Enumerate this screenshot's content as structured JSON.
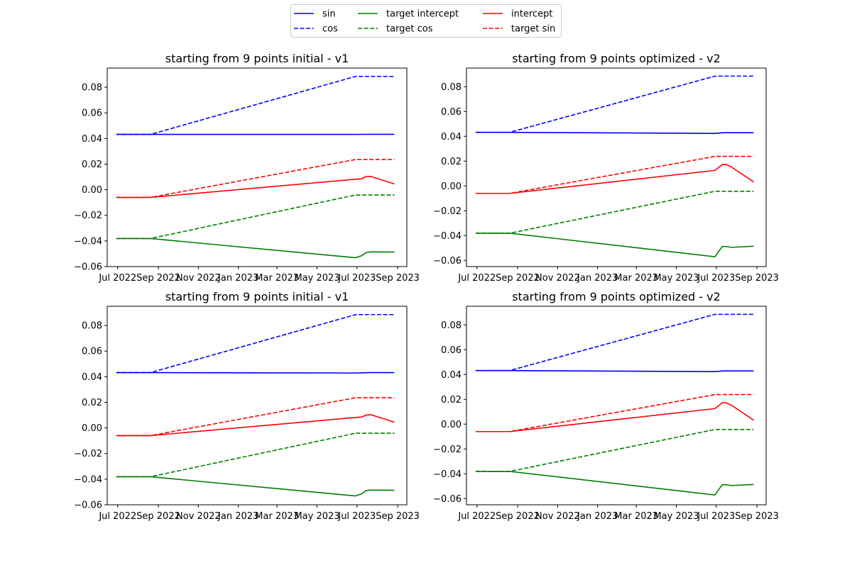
{
  "colors": {
    "sin": "#0000ff",
    "cos": "#0000ff",
    "intercept": "#ff0000",
    "target_sin": "#ff0000",
    "target_intercept": "#008000",
    "target_cos": "#008000"
  },
  "legend": {
    "placement": "top-center",
    "entries": [
      {
        "label": "sin",
        "color": "#0000ff",
        "style": "solid"
      },
      {
        "label": "cos",
        "color": "#0000ff",
        "style": "dashed"
      },
      {
        "label": "target intercept",
        "color": "#008000",
        "style": "solid"
      },
      {
        "label": "target cos",
        "color": "#008000",
        "style": "dashed"
      },
      {
        "label": "intercept",
        "color": "#ff0000",
        "style": "solid"
      },
      {
        "label": "target sin",
        "color": "#ff0000",
        "style": "dashed"
      }
    ]
  },
  "chart_data": [
    {
      "type": "line",
      "title": "starting from 9 points initial - v1",
      "xlabel": "",
      "ylabel": "",
      "xlim": [
        "2022-06-15",
        "2023-09-15"
      ],
      "ylim": [
        -0.06,
        0.095
      ],
      "x_ticks": [
        "2022-07-01",
        "2022-09-01",
        "2022-11-01",
        "2023-01-01",
        "2023-03-01",
        "2023-05-01",
        "2023-07-01",
        "2023-09-01"
      ],
      "x_tick_labels": [
        "Jul 2022",
        "Sep 2022",
        "Nov 2022",
        "Jan 2023",
        "Mar 2023",
        "May 2023",
        "Jul 2023",
        "Sep 2023"
      ],
      "y_ticks": [
        -0.06,
        -0.04,
        -0.02,
        0.0,
        0.02,
        0.04,
        0.06,
        0.08
      ],
      "y_tick_labels": [
        "−0.06",
        "−0.04",
        "−0.02",
        "0.00",
        "0.02",
        "0.04",
        "0.06",
        "0.08"
      ],
      "grid": false,
      "series": [
        {
          "name": "sin",
          "style": "solid",
          "color": "#0000ff",
          "points": [
            [
              "2022-06-29",
              0.0432
            ],
            [
              "2022-08-20",
              0.0432
            ],
            [
              "2023-06-29",
              0.0432
            ],
            [
              "2023-07-20",
              0.0433
            ],
            [
              "2023-08-27",
              0.0433
            ]
          ]
        },
        {
          "name": "cos",
          "style": "dashed",
          "color": "#0000ff",
          "points": [
            [
              "2022-06-29",
              0.0432
            ],
            [
              "2022-08-20",
              0.0432
            ],
            [
              "2023-06-29",
              0.0885
            ],
            [
              "2023-07-20",
              0.0885
            ],
            [
              "2023-08-27",
              0.0885
            ]
          ]
        },
        {
          "name": "intercept",
          "style": "solid",
          "color": "#ff0000",
          "points": [
            [
              "2022-06-29",
              -0.006
            ],
            [
              "2022-08-20",
              -0.006
            ],
            [
              "2023-06-29",
              0.0082
            ],
            [
              "2023-07-08",
              0.0085
            ],
            [
              "2023-07-15",
              0.0103
            ],
            [
              "2023-07-22",
              0.0104
            ],
            [
              "2023-08-27",
              0.0045
            ]
          ]
        },
        {
          "name": "target sin",
          "style": "dashed",
          "color": "#ff0000",
          "points": [
            [
              "2022-06-29",
              -0.006
            ],
            [
              "2022-08-20",
              -0.006
            ],
            [
              "2023-06-29",
              0.0236
            ],
            [
              "2023-07-20",
              0.0236
            ],
            [
              "2023-08-27",
              0.0236
            ]
          ]
        },
        {
          "name": "target intercept",
          "style": "solid",
          "color": "#008000",
          "points": [
            [
              "2022-06-29",
              -0.0381
            ],
            [
              "2022-08-20",
              -0.0381
            ],
            [
              "2023-06-29",
              -0.0531
            ],
            [
              "2023-07-08",
              -0.0515
            ],
            [
              "2023-07-15",
              -0.0491
            ],
            [
              "2023-07-22",
              -0.0485
            ],
            [
              "2023-08-27",
              -0.0487
            ]
          ]
        },
        {
          "name": "target cos",
          "style": "dashed",
          "color": "#008000",
          "points": [
            [
              "2022-06-29",
              -0.0381
            ],
            [
              "2022-08-20",
              -0.0381
            ],
            [
              "2023-06-29",
              -0.0041
            ],
            [
              "2023-07-20",
              -0.0041
            ],
            [
              "2023-08-27",
              -0.0041
            ]
          ]
        }
      ]
    },
    {
      "type": "line",
      "title": "starting from 9 points optimized - v2",
      "xlabel": "",
      "ylabel": "",
      "xlim": [
        "2022-06-15",
        "2023-09-15"
      ],
      "ylim": [
        -0.065,
        0.095
      ],
      "x_ticks": [
        "2022-07-01",
        "2022-09-01",
        "2022-11-01",
        "2023-01-01",
        "2023-03-01",
        "2023-05-01",
        "2023-07-01",
        "2023-09-01"
      ],
      "x_tick_labels": [
        "Jul 2022",
        "Sep 2022",
        "Nov 2022",
        "Jan 2023",
        "Mar 2023",
        "May 2023",
        "Jul 2023",
        "Sep 2023"
      ],
      "y_ticks": [
        -0.06,
        -0.04,
        -0.02,
        0.0,
        0.02,
        0.04,
        0.06,
        0.08
      ],
      "y_tick_labels": [
        "−0.06",
        "−0.04",
        "−0.02",
        "0.00",
        "0.02",
        "0.04",
        "0.06",
        "0.08"
      ],
      "grid": false,
      "series": [
        {
          "name": "sin",
          "style": "solid",
          "color": "#0000ff",
          "points": [
            [
              "2022-06-29",
              0.0432
            ],
            [
              "2022-08-20",
              0.0432
            ],
            [
              "2023-06-29",
              0.0423
            ],
            [
              "2023-07-12",
              0.0429
            ],
            [
              "2023-08-27",
              0.0429
            ]
          ]
        },
        {
          "name": "cos",
          "style": "dashed",
          "color": "#0000ff",
          "points": [
            [
              "2022-06-29",
              0.0432
            ],
            [
              "2022-08-20",
              0.0432
            ],
            [
              "2023-06-29",
              0.0885
            ],
            [
              "2023-07-20",
              0.0885
            ],
            [
              "2023-08-27",
              0.0885
            ]
          ]
        },
        {
          "name": "intercept",
          "style": "solid",
          "color": "#ff0000",
          "points": [
            [
              "2022-06-29",
              -0.006
            ],
            [
              "2022-08-20",
              -0.006
            ],
            [
              "2023-06-29",
              0.0125
            ],
            [
              "2023-07-10",
              0.0172
            ],
            [
              "2023-07-16",
              0.0172
            ],
            [
              "2023-07-24",
              0.0153
            ],
            [
              "2023-08-27",
              0.0032
            ]
          ]
        },
        {
          "name": "target sin",
          "style": "dashed",
          "color": "#ff0000",
          "points": [
            [
              "2022-06-29",
              -0.006
            ],
            [
              "2022-08-20",
              -0.006
            ],
            [
              "2023-06-29",
              0.0238
            ],
            [
              "2023-07-20",
              0.0238
            ],
            [
              "2023-08-27",
              0.0238
            ]
          ]
        },
        {
          "name": "target intercept",
          "style": "solid",
          "color": "#008000",
          "points": [
            [
              "2022-06-29",
              -0.0381
            ],
            [
              "2022-08-20",
              -0.0381
            ],
            [
              "2023-06-29",
              -0.0571
            ],
            [
              "2023-07-10",
              -0.0488
            ],
            [
              "2023-07-16",
              -0.0488
            ],
            [
              "2023-07-24",
              -0.0495
            ],
            [
              "2023-08-27",
              -0.0486
            ]
          ]
        },
        {
          "name": "target cos",
          "style": "dashed",
          "color": "#008000",
          "points": [
            [
              "2022-06-29",
              -0.0381
            ],
            [
              "2022-08-20",
              -0.0381
            ],
            [
              "2023-06-29",
              -0.0043
            ],
            [
              "2023-07-20",
              -0.0043
            ],
            [
              "2023-08-27",
              -0.0043
            ]
          ]
        }
      ]
    },
    {
      "type": "line",
      "title": "starting from 9 points initial - v1",
      "xlabel": "",
      "ylabel": "",
      "xlim": [
        "2022-06-15",
        "2023-09-15"
      ],
      "ylim": [
        -0.06,
        0.095
      ],
      "x_ticks": [
        "2022-07-01",
        "2022-09-01",
        "2022-11-01",
        "2023-01-01",
        "2023-03-01",
        "2023-05-01",
        "2023-07-01",
        "2023-09-01"
      ],
      "x_tick_labels": [
        "Jul 2022",
        "Sep 2022",
        "Nov 2022",
        "Jan 2023",
        "Mar 2023",
        "May 2023",
        "Jul 2023",
        "Sep 2023"
      ],
      "y_ticks": [
        -0.06,
        -0.04,
        -0.02,
        0.0,
        0.02,
        0.04,
        0.06,
        0.08
      ],
      "y_tick_labels": [
        "−0.06",
        "−0.04",
        "−0.02",
        "0.00",
        "0.02",
        "0.04",
        "0.06",
        "0.08"
      ],
      "grid": false,
      "series": [
        {
          "name": "sin",
          "style": "solid",
          "color": "#0000ff",
          "points": [
            [
              "2022-06-29",
              0.0432
            ],
            [
              "2022-08-20",
              0.0432
            ],
            [
              "2023-06-29",
              0.0429
            ],
            [
              "2023-07-20",
              0.0432
            ],
            [
              "2023-08-27",
              0.0432
            ]
          ]
        },
        {
          "name": "cos",
          "style": "dashed",
          "color": "#0000ff",
          "points": [
            [
              "2022-06-29",
              0.0432
            ],
            [
              "2022-08-20",
              0.0432
            ],
            [
              "2023-06-29",
              0.0885
            ],
            [
              "2023-07-20",
              0.0885
            ],
            [
              "2023-08-27",
              0.0885
            ]
          ]
        },
        {
          "name": "intercept",
          "style": "solid",
          "color": "#ff0000",
          "points": [
            [
              "2022-06-29",
              -0.006
            ],
            [
              "2022-08-20",
              -0.006
            ],
            [
              "2023-06-29",
              0.0082
            ],
            [
              "2023-07-08",
              0.0085
            ],
            [
              "2023-07-15",
              0.01
            ],
            [
              "2023-07-22",
              0.0104
            ],
            [
              "2023-08-27",
              0.0045
            ]
          ]
        },
        {
          "name": "target sin",
          "style": "dashed",
          "color": "#ff0000",
          "points": [
            [
              "2022-06-29",
              -0.006
            ],
            [
              "2022-08-20",
              -0.006
            ],
            [
              "2023-06-29",
              0.0236
            ],
            [
              "2023-07-20",
              0.0236
            ],
            [
              "2023-08-27",
              0.0236
            ]
          ]
        },
        {
          "name": "target intercept",
          "style": "solid",
          "color": "#008000",
          "points": [
            [
              "2022-06-29",
              -0.0381
            ],
            [
              "2022-08-20",
              -0.0381
            ],
            [
              "2023-06-29",
              -0.0531
            ],
            [
              "2023-07-08",
              -0.0515
            ],
            [
              "2023-07-15",
              -0.0489
            ],
            [
              "2023-07-22",
              -0.0485
            ],
            [
              "2023-08-27",
              -0.0487
            ]
          ]
        },
        {
          "name": "target cos",
          "style": "dashed",
          "color": "#008000",
          "points": [
            [
              "2022-06-29",
              -0.0381
            ],
            [
              "2022-08-20",
              -0.0381
            ],
            [
              "2023-06-29",
              -0.0041
            ],
            [
              "2023-07-20",
              -0.0041
            ],
            [
              "2023-08-27",
              -0.0041
            ]
          ]
        }
      ]
    },
    {
      "type": "line",
      "title": "starting from 9 points optimized - v2",
      "xlabel": "",
      "ylabel": "",
      "xlim": [
        "2022-06-15",
        "2023-09-15"
      ],
      "ylim": [
        -0.065,
        0.095
      ],
      "x_ticks": [
        "2022-07-01",
        "2022-09-01",
        "2022-11-01",
        "2023-01-01",
        "2023-03-01",
        "2023-05-01",
        "2023-07-01",
        "2023-09-01"
      ],
      "x_tick_labels": [
        "Jul 2022",
        "Sep 2022",
        "Nov 2022",
        "Jan 2023",
        "Mar 2023",
        "May 2023",
        "Jul 2023",
        "Sep 2023"
      ],
      "y_ticks": [
        -0.06,
        -0.04,
        -0.02,
        0.0,
        0.02,
        0.04,
        0.06,
        0.08
      ],
      "y_tick_labels": [
        "−0.06",
        "−0.04",
        "−0.02",
        "0.00",
        "0.02",
        "0.04",
        "0.06",
        "0.08"
      ],
      "grid": false,
      "series": [
        {
          "name": "sin",
          "style": "solid",
          "color": "#0000ff",
          "points": [
            [
              "2022-06-29",
              0.0432
            ],
            [
              "2022-08-20",
              0.0432
            ],
            [
              "2023-06-29",
              0.0423
            ],
            [
              "2023-07-12",
              0.0429
            ],
            [
              "2023-08-27",
              0.0429
            ]
          ]
        },
        {
          "name": "cos",
          "style": "dashed",
          "color": "#0000ff",
          "points": [
            [
              "2022-06-29",
              0.0432
            ],
            [
              "2022-08-20",
              0.0432
            ],
            [
              "2023-06-29",
              0.0885
            ],
            [
              "2023-07-20",
              0.0885
            ],
            [
              "2023-08-27",
              0.0885
            ]
          ]
        },
        {
          "name": "intercept",
          "style": "solid",
          "color": "#ff0000",
          "points": [
            [
              "2022-06-29",
              -0.006
            ],
            [
              "2022-08-20",
              -0.006
            ],
            [
              "2023-06-29",
              0.0125
            ],
            [
              "2023-07-10",
              0.0172
            ],
            [
              "2023-07-16",
              0.0172
            ],
            [
              "2023-07-24",
              0.0153
            ],
            [
              "2023-08-27",
              0.0032
            ]
          ]
        },
        {
          "name": "target sin",
          "style": "dashed",
          "color": "#ff0000",
          "points": [
            [
              "2022-06-29",
              -0.006
            ],
            [
              "2022-08-20",
              -0.006
            ],
            [
              "2023-06-29",
              0.0238
            ],
            [
              "2023-07-20",
              0.0238
            ],
            [
              "2023-08-27",
              0.0238
            ]
          ]
        },
        {
          "name": "target intercept",
          "style": "solid",
          "color": "#008000",
          "points": [
            [
              "2022-06-29",
              -0.0381
            ],
            [
              "2022-08-20",
              -0.0381
            ],
            [
              "2023-06-29",
              -0.0571
            ],
            [
              "2023-07-10",
              -0.0488
            ],
            [
              "2023-07-16",
              -0.0488
            ],
            [
              "2023-07-24",
              -0.0495
            ],
            [
              "2023-08-27",
              -0.0486
            ]
          ]
        },
        {
          "name": "target cos",
          "style": "dashed",
          "color": "#008000",
          "points": [
            [
              "2022-06-29",
              -0.0381
            ],
            [
              "2022-08-20",
              -0.0381
            ],
            [
              "2023-06-29",
              -0.0043
            ],
            [
              "2023-07-20",
              -0.0043
            ],
            [
              "2023-08-27",
              -0.0043
            ]
          ]
        }
      ]
    }
  ]
}
